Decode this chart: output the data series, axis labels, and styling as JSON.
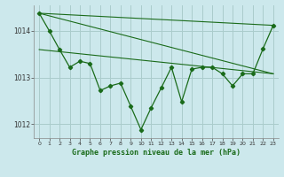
{
  "title": "Graphe pression niveau de la mer (hPa)",
  "background_color": "#cce8ec",
  "grid_color": "#aacccc",
  "line_color": "#1a6b1a",
  "marker_color": "#1a6b1a",
  "xlim": [
    -0.5,
    23.5
  ],
  "ylim": [
    1011.7,
    1014.55
  ],
  "yticks": [
    1012,
    1013,
    1014
  ],
  "xticks": [
    0,
    1,
    2,
    3,
    4,
    5,
    6,
    7,
    8,
    9,
    10,
    11,
    12,
    13,
    14,
    15,
    16,
    17,
    18,
    19,
    20,
    21,
    22,
    23
  ],
  "series1_x": [
    0,
    1,
    2,
    3,
    4,
    5,
    6,
    7,
    8,
    9,
    10,
    11,
    12,
    13,
    14,
    15,
    16,
    17,
    18,
    19,
    20,
    21,
    22,
    23
  ],
  "series1_y": [
    1014.38,
    1014.0,
    1013.6,
    1013.22,
    1013.35,
    1013.3,
    1012.72,
    1012.82,
    1012.88,
    1012.38,
    1011.88,
    1012.35,
    1012.78,
    1013.22,
    1012.48,
    1013.18,
    1013.22,
    1013.22,
    1013.08,
    1012.82,
    1013.08,
    1013.08,
    1013.62,
    1014.12
  ],
  "line1_x": [
    0,
    23
  ],
  "line1_y": [
    1014.38,
    1014.12
  ],
  "line2_x": [
    0,
    23
  ],
  "line2_y": [
    1014.38,
    1013.08
  ],
  "line3_x": [
    0,
    23
  ],
  "line3_y": [
    1013.6,
    1013.08
  ]
}
